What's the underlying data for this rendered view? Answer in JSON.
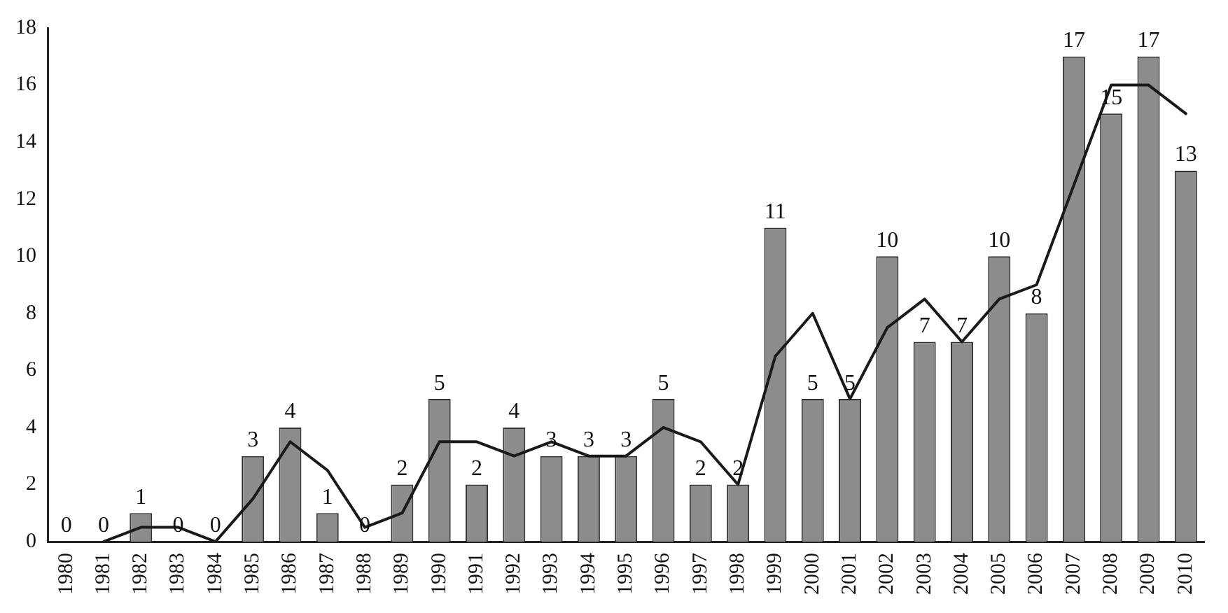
{
  "chart_data": {
    "type": "bar",
    "categories": [
      "1980",
      "1981",
      "1982",
      "1983",
      "1984",
      "1985",
      "1986",
      "1987",
      "1988",
      "1989",
      "1990",
      "1991",
      "1992",
      "1993",
      "1994",
      "1995",
      "1996",
      "1997",
      "1998",
      "1999",
      "2000",
      "2001",
      "2002",
      "2003",
      "2004",
      "2005",
      "2006",
      "2007",
      "2008",
      "2009",
      "2010"
    ],
    "series": [
      {
        "color": "#8c8c8c",
        "values": [
          0,
          0,
          1,
          0,
          0,
          3,
          4,
          1,
          0,
          2,
          5,
          2,
          4,
          3,
          3,
          3,
          5,
          2,
          2,
          11,
          5,
          5,
          10,
          7,
          7,
          10,
          8,
          17,
          15,
          17,
          13
        ],
        "value_labels": [
          "0",
          "0",
          "1",
          "0",
          "0",
          "3",
          "4",
          "1",
          "0",
          "2",
          "5",
          "2",
          "4",
          "3",
          "3",
          "3",
          "5",
          "2",
          "2",
          "11",
          "5",
          "5",
          "10",
          "7",
          "7",
          "10",
          "8",
          "17",
          "15",
          "17",
          "13"
        ]
      },
      {
        "type": "line",
        "color": "#1a1a1a",
        "marker": "none",
        "line_style": "solid",
        "values": [
          null,
          0,
          0.5,
          0.5,
          0,
          1.5,
          3.5,
          2.5,
          0.5,
          1,
          3.5,
          3.5,
          3,
          3.5,
          3,
          3,
          4,
          3.5,
          2,
          6.5,
          8,
          5,
          7.5,
          8.5,
          7,
          8.5,
          9,
          12.5,
          16,
          16,
          15
        ]
      }
    ],
    "ylim": [
      0,
      18
    ],
    "yticks": [
      0,
      2,
      4,
      6,
      8,
      10,
      12,
      14,
      16,
      18
    ],
    "grid": false,
    "legend": false
  }
}
